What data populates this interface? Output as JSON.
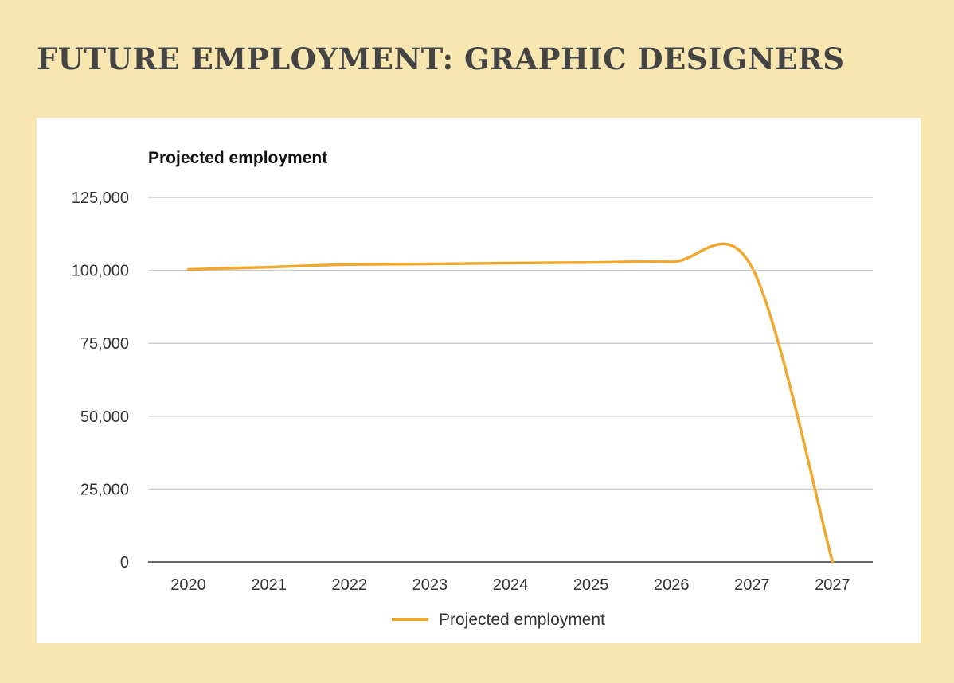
{
  "page": {
    "title": "FUTURE EMPLOYMENT: GRAPHIC DESIGNERS"
  },
  "chart_data": {
    "type": "line",
    "title": "Projected employment",
    "xlabel": "",
    "ylabel": "",
    "categories": [
      "2020",
      "2021",
      "2022",
      "2023",
      "2024",
      "2025",
      "2026",
      "2027",
      "2027"
    ],
    "series": [
      {
        "name": "Projected employment",
        "color": "#f0a830",
        "values": [
          100300,
          101100,
          102000,
          102200,
          102500,
          102700,
          102900,
          101000,
          0
        ]
      }
    ],
    "ylim": [
      0,
      125000
    ],
    "yticks": [
      0,
      25000,
      50000,
      75000,
      100000,
      125000
    ],
    "ytick_labels": [
      "0",
      "25,000",
      "50,000",
      "75,000",
      "100,000",
      "125,000"
    ],
    "grid": true,
    "legend": "bottom",
    "smooth": true
  }
}
